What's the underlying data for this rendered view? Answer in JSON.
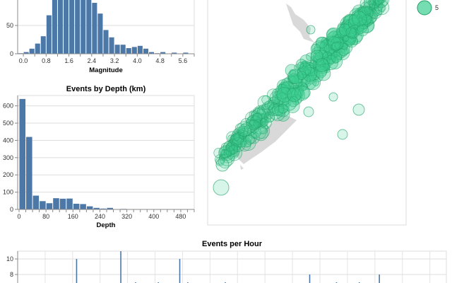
{
  "chart_data": [
    {
      "type": "bar",
      "xlabel": "Magnitude",
      "ylabel": "",
      "bin_width": 0.2,
      "bin_starts": [
        -0.2,
        0.0,
        0.2,
        0.4,
        0.6,
        0.8,
        1.0,
        1.2,
        1.4,
        1.6,
        1.8,
        2.0,
        2.2,
        2.4,
        2.6,
        2.8,
        3.0,
        3.2,
        3.4,
        3.6,
        3.8,
        4.0,
        4.2,
        4.4,
        4.6,
        4.8,
        5.0,
        5.2,
        5.4,
        5.6,
        5.8
      ],
      "values": [
        1,
        3,
        9,
        18,
        31,
        68,
        110,
        130,
        135,
        140,
        130,
        120,
        105,
        90,
        71,
        42,
        29,
        16,
        16,
        10,
        12,
        14,
        9,
        3,
        1,
        3,
        0,
        2,
        0,
        2,
        0
      ],
      "x_ticks": [
        "0.0",
        "0.8",
        "1.6",
        "2.4",
        "3.2",
        "4.0",
        "4.8",
        "5.6"
      ],
      "y_ticks": [
        "0",
        "50"
      ],
      "xlim": [
        -0.2,
        6.0
      ],
      "grid": true,
      "color": "#4c78a8"
    },
    {
      "type": "bar",
      "title": "Events by Depth (km)",
      "xlabel": "Depth",
      "ylabel": "",
      "bin_width": 20,
      "bin_starts": [
        0,
        20,
        40,
        60,
        80,
        100,
        120,
        140,
        160,
        180,
        200,
        220,
        240,
        260,
        280,
        300,
        320,
        340,
        360,
        380,
        400,
        420,
        440,
        460,
        480,
        500
      ],
      "values": [
        640,
        420,
        80,
        48,
        36,
        65,
        62,
        63,
        33,
        31,
        18,
        9,
        5,
        9,
        1,
        3,
        0,
        1,
        1,
        1,
        1,
        1,
        2,
        1,
        0,
        1
      ],
      "x_ticks": [
        "0",
        "80",
        "160",
        "240",
        "320",
        "400",
        "480"
      ],
      "y_ticks": [
        "0",
        "100",
        "200",
        "300",
        "400",
        "500",
        "600"
      ],
      "xlim": [
        0,
        520
      ],
      "ylim": [
        0,
        660
      ],
      "grid": true,
      "color": "#4c78a8"
    },
    {
      "type": "bar",
      "title": "Events per Hour",
      "y_ticks": [
        "8",
        "10"
      ],
      "spikes": [
        {
          "hour": 44,
          "value": 10
        },
        {
          "hour": 77,
          "value": 12
        },
        {
          "hour": 88,
          "value": 7
        },
        {
          "hour": 105,
          "value": 7
        },
        {
          "hour": 121,
          "value": 10
        },
        {
          "hour": 127,
          "value": 7
        },
        {
          "hour": 155,
          "value": 7
        },
        {
          "hour": 218,
          "value": 8
        },
        {
          "hour": 238,
          "value": 7
        },
        {
          "hour": 255,
          "value": 7
        },
        {
          "hour": 270,
          "value": 8
        }
      ],
      "hours_span": 320,
      "grid": true,
      "color": "#4c78a8"
    },
    {
      "type": "scatter",
      "subtype": "geo-bubble-map",
      "legend": {
        "size_label": "5",
        "placement": "top-right"
      },
      "point_color": "#3ccf91",
      "land_color": "#d9d9d9"
    }
  ]
}
